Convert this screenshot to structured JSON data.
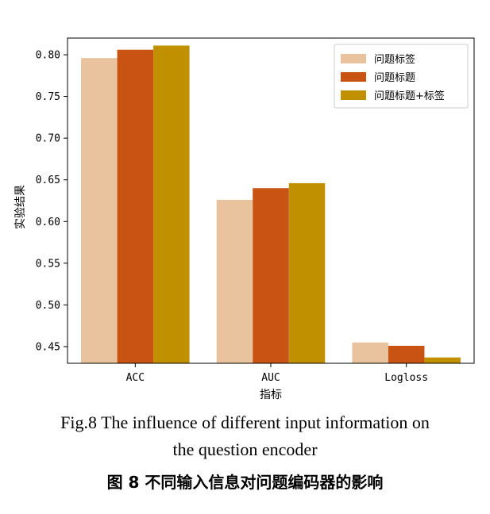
{
  "chart_data": {
    "type": "bar",
    "categories": [
      "ACC",
      "AUC",
      "Logloss"
    ],
    "series": [
      {
        "name": "问题标签",
        "color": "#e8c39e",
        "values": [
          0.796,
          0.626,
          0.455
        ]
      },
      {
        "name": "问题标题",
        "color": "#c85312",
        "values": [
          0.806,
          0.64,
          0.451
        ]
      },
      {
        "name": "问题标题+标签",
        "color": "#c09000",
        "values": [
          0.811,
          0.646,
          0.437
        ]
      }
    ],
    "xlabel": "指标",
    "ylabel": "实验结果",
    "ylim": [
      0.43,
      0.82
    ],
    "yticks": [
      "0.45",
      "0.50",
      "0.55",
      "0.60",
      "0.65",
      "0.70",
      "0.75",
      "0.80"
    ],
    "grid": false,
    "legend_position": "top-right"
  },
  "caption": {
    "en_line1": "Fig.8 The influence of different input information on",
    "en_line2": "the question encoder",
    "zh": "图 8 不同输入信息对问题编码器的影响"
  }
}
